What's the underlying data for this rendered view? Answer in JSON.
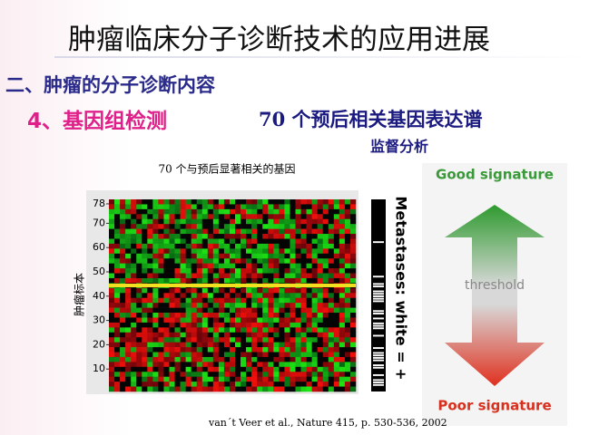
{
  "header": {
    "title": "肿瘤临床分子诊断技术的应用进展"
  },
  "section": {
    "heading": "二、肿瘤的分子诊断内容",
    "item": "4、基因组检测",
    "topic": "70 个预后相关基因表达谱",
    "subtopic": "监督分析"
  },
  "figure": {
    "caption": "70 个与预后显著相关的基因",
    "y_label": "肿瘤标本",
    "yticks": [
      10,
      20,
      30,
      40,
      50,
      60,
      70,
      78
    ],
    "side_label": "Metastases: white = +",
    "arrow": {
      "top": "Good signature",
      "middle": "threshold",
      "bottom": "Poor signature"
    },
    "citation": "van´t Veer et al., Nature 415, p. 530-536, 2002"
  }
}
